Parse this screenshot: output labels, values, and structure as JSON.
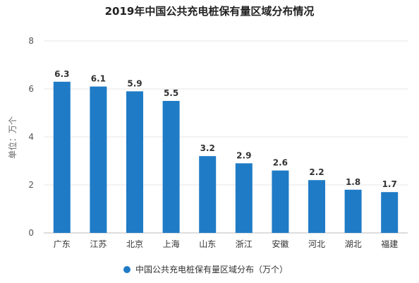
{
  "chart_data": {
    "type": "bar",
    "title": "2019年中国公共充电桩保有量区域分布情况",
    "ylabel": "单位：万个",
    "xlabel": "",
    "ylim": [
      0,
      8
    ],
    "yticks": [
      0,
      2,
      4,
      6,
      8
    ],
    "grid": true,
    "legend_position": "bottom-center",
    "bar_color": "#1f7bc6",
    "categories": [
      "广东",
      "江苏",
      "北京",
      "上海",
      "山东",
      "浙江",
      "安徽",
      "河北",
      "湖北",
      "福建"
    ],
    "series": [
      {
        "name": "中国公共充电桩保有量区域分布（万个）",
        "values": [
          6.3,
          6.1,
          5.9,
          5.5,
          3.2,
          2.9,
          2.6,
          2.2,
          1.8,
          1.7
        ],
        "labels": [
          "6.3",
          "6.1",
          "5.9",
          "5.5",
          "3.2",
          "2.9",
          "2.6",
          "2.2",
          "1.8",
          "1.7"
        ]
      }
    ]
  }
}
